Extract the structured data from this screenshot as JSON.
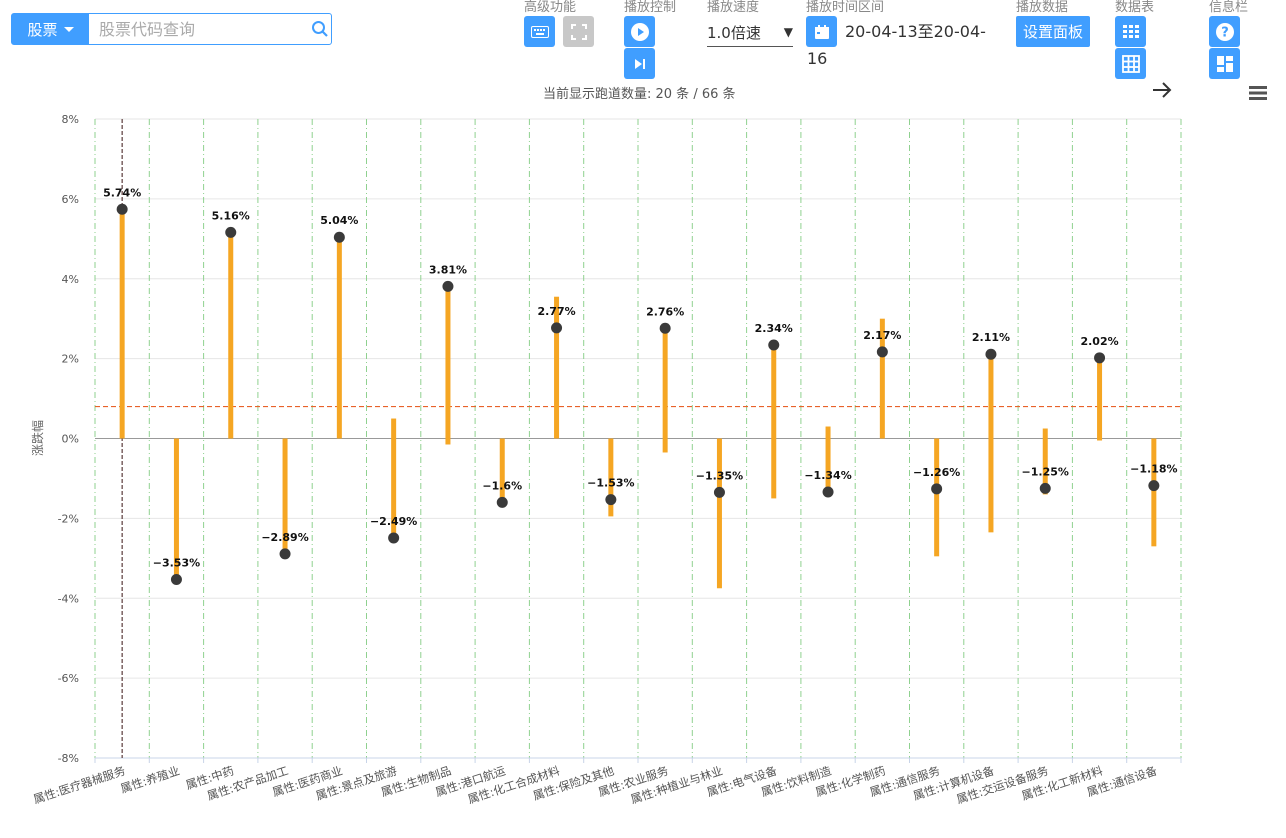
{
  "toolbar": {
    "stock_button": "股票",
    "search_placeholder": "股票代码查询",
    "advanced_label": "高级功能",
    "playback_label": "播放控制",
    "speed_label": "播放速度",
    "speed_value": "1.0倍速",
    "range_label": "播放时间区间",
    "date_range_line1": "20-04-13至20-04-",
    "date_range_line2": "16",
    "data_label": "播放数据",
    "settings_button": "设置面板",
    "datatable_label": "数据表",
    "info_label": "信息栏",
    "lane_count_text": "当前显示跑道数量: 20 条 / 66 条",
    "icons": [
      "keyboard-icon",
      "fullscreen-icon",
      "play-icon",
      "step-forward-icon",
      "calendar-icon",
      "grid-icon",
      "table-icon",
      "help-icon",
      "dashboard-icon",
      "arrow-right-icon",
      "menu-icon"
    ]
  },
  "chart_data": {
    "type": "dot-range",
    "ylabel": "涨跌幅",
    "ylim": [
      -8,
      8
    ],
    "y_ticks": [
      "-8%",
      "-6%",
      "-4%",
      "-2%",
      "0%",
      "2%",
      "4%",
      "6%",
      "8%"
    ],
    "y_tick_values": [
      -8,
      -6,
      -4,
      -2,
      0,
      2,
      4,
      6,
      8
    ],
    "reference_line": 0.8,
    "colors": {
      "bar": "#f5a623",
      "dot": "#3a3a3a",
      "ref": "#e8622a",
      "grid": "#8fd18f"
    },
    "categories": [
      "属性:医疗器械服务",
      "属性:养殖业",
      "属性:中药",
      "属性:农产品加工",
      "属性:医药商业",
      "属性:景点及旅游",
      "属性:生物制品",
      "属性:港口航运",
      "属性:化工合成材料",
      "属性:保险及其他",
      "属性:农业服务",
      "属性:种植业与林业",
      "属性:电气设备",
      "属性:饮料制造",
      "属性:化学制药",
      "属性:通信服务",
      "属性:计算机设备",
      "属性:交运设备服务",
      "属性:化工新材料",
      "属性:通信设备"
    ],
    "values": [
      5.74,
      -3.53,
      5.16,
      -2.89,
      5.04,
      -2.49,
      3.81,
      -1.6,
      2.77,
      -1.53,
      2.76,
      -1.35,
      2.34,
      -1.34,
      2.17,
      -1.26,
      2.11,
      -1.25,
      2.02,
      -1.18
    ],
    "value_labels": [
      "5.74%",
      "−3.53%",
      "5.16%",
      "−2.89%",
      "5.04%",
      "−2.49%",
      "3.81%",
      "−1.6%",
      "2.77%",
      "−1.53%",
      "2.76%",
      "−1.35%",
      "2.34%",
      "−1.34%",
      "2.17%",
      "−1.26%",
      "2.11%",
      "−1.25%",
      "2.02%",
      "−1.18%"
    ],
    "range_low": [
      0,
      -3.53,
      0,
      -2.89,
      0,
      -2.49,
      -0.15,
      -1.6,
      0,
      -1.95,
      -0.35,
      -3.75,
      -1.5,
      -1.34,
      0,
      -2.95,
      -2.35,
      -1.4,
      -0.05,
      -2.7
    ],
    "range_high": [
      5.74,
      0,
      5.16,
      0,
      5.04,
      0.5,
      3.81,
      0,
      3.55,
      0,
      2.76,
      0,
      2.34,
      0.3,
      3.0,
      0,
      2.11,
      0.25,
      2.02,
      0
    ]
  }
}
